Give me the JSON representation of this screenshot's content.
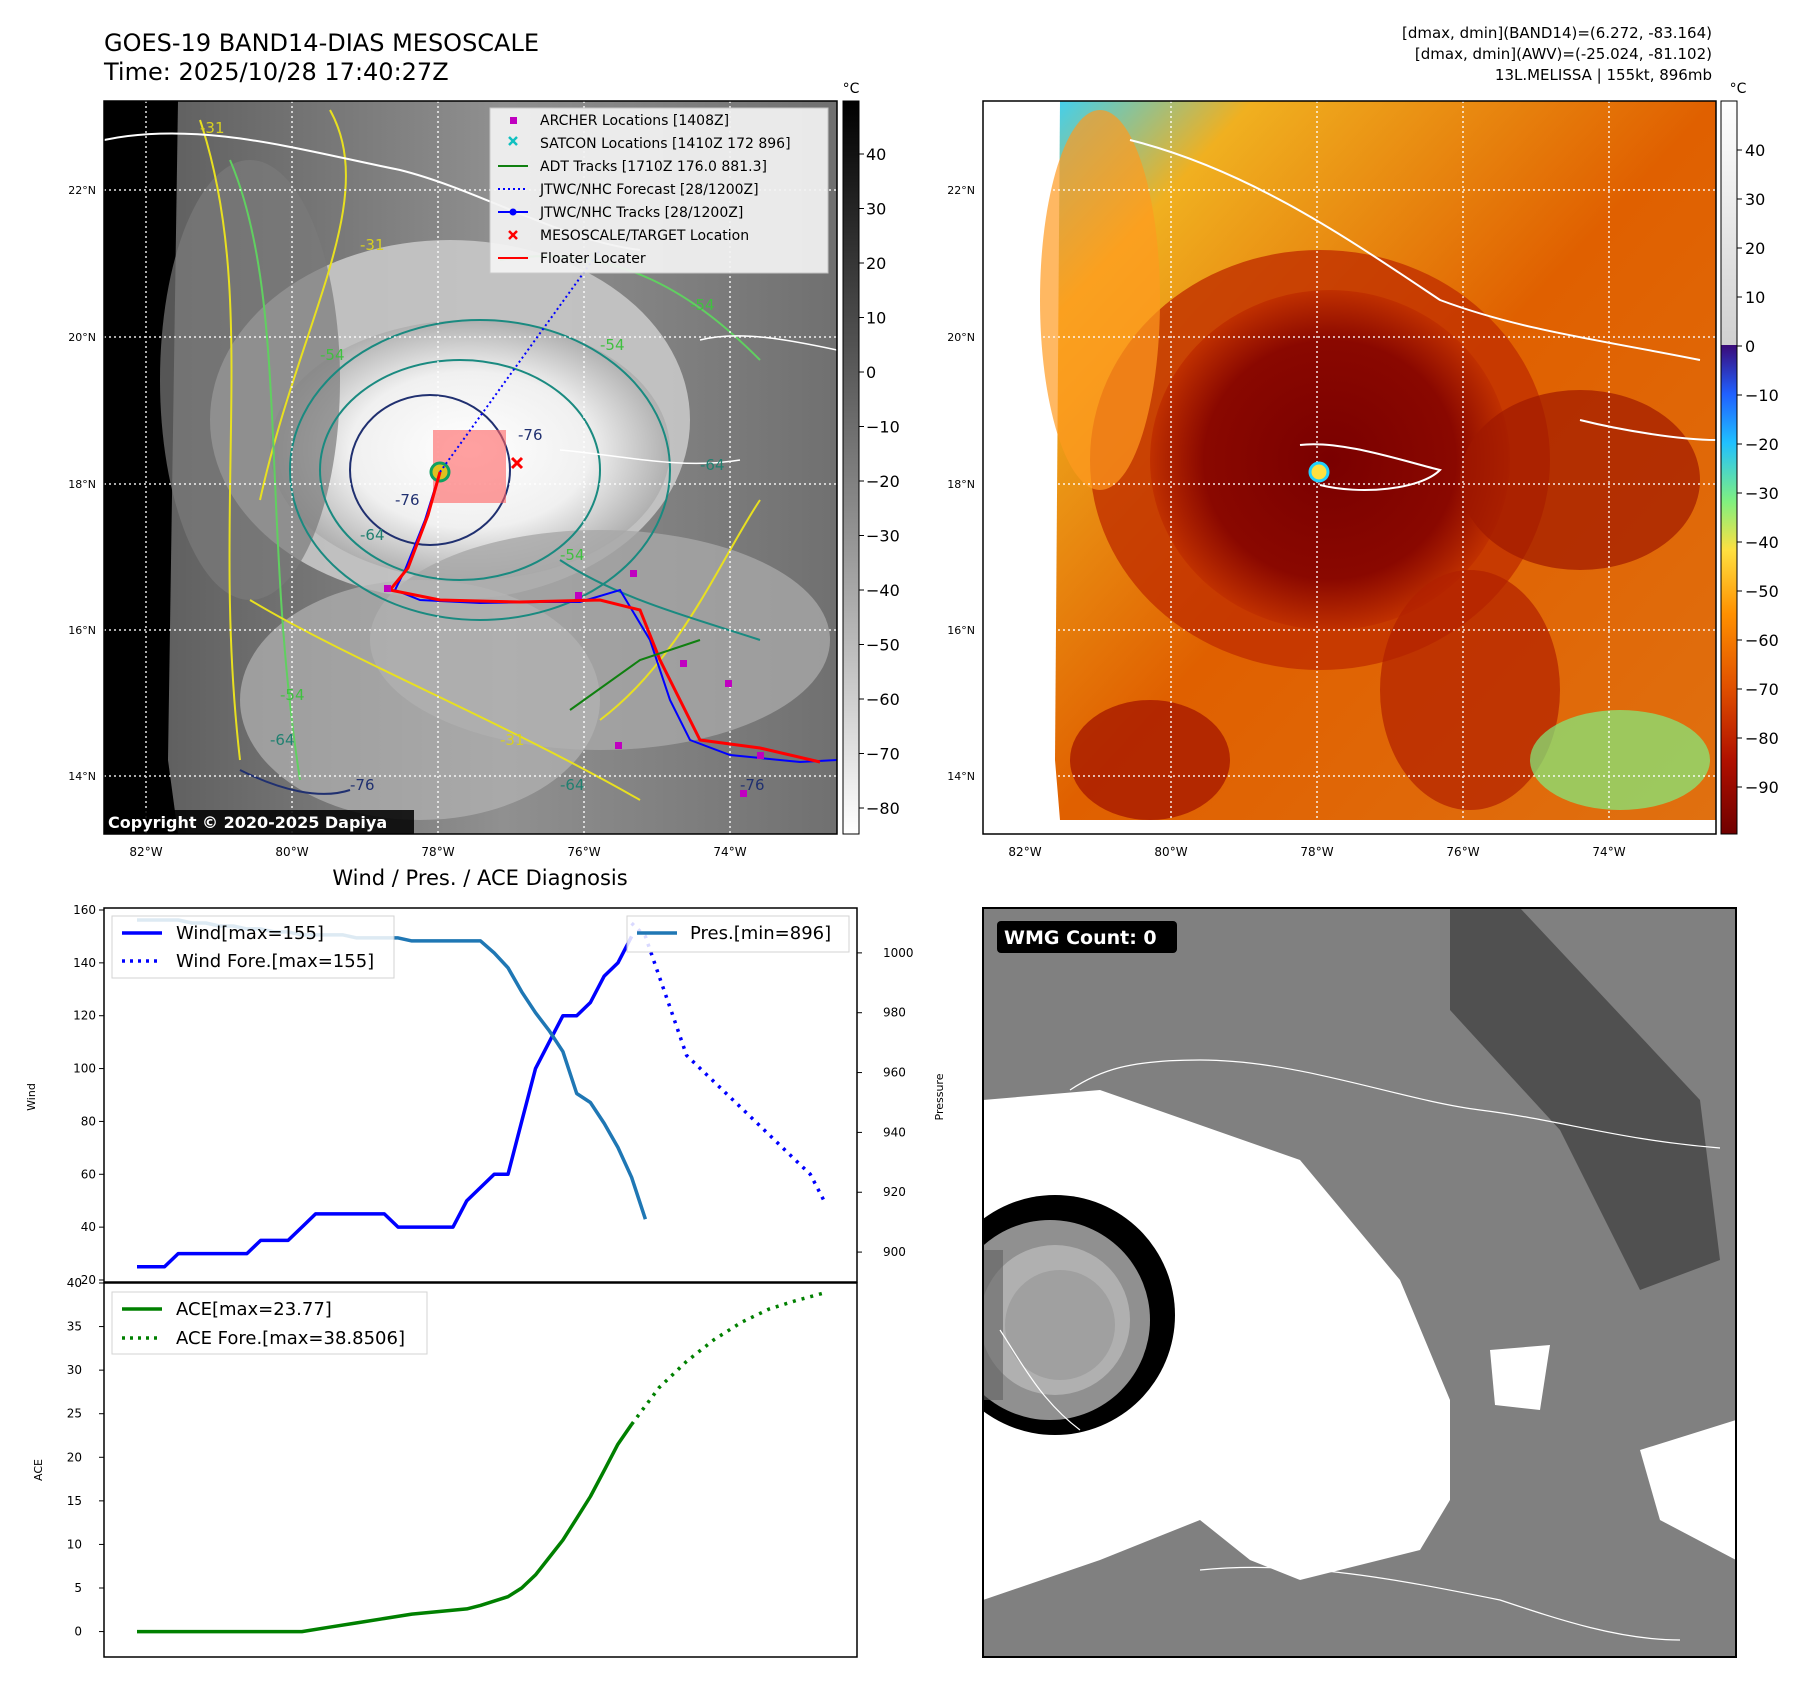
{
  "header": {
    "title_line1": "GOES-19 BAND14-DIAS MESOSCALE",
    "title_line2": "Time: 2025/10/28 17:40:27Z",
    "right_line1": "[dmax, dmin](BAND14)=(6.272, -83.164)",
    "right_line2": "[dmax, dmin](AWV)=(-25.024, -81.102)",
    "right_line3": "13L.MELISSA | 155kt, 896mb"
  },
  "map_axes": {
    "lat_labels": [
      "22°N",
      "20°N",
      "18°N",
      "16°N",
      "14°N"
    ],
    "lon_labels": [
      "82°W",
      "80°W",
      "78°W",
      "76°W",
      "74°W"
    ],
    "contour_labels": [
      "-31",
      "-31",
      "-54",
      "-54",
      "-54",
      "-64",
      "-64",
      "-76",
      "-76",
      "-76",
      "-64",
      "-54",
      "-54",
      "-31",
      "-64",
      "-76"
    ]
  },
  "gray_colorbar": {
    "unit": "°C",
    "ticks": [
      "40",
      "30",
      "20",
      "10",
      "0",
      "−10",
      "−20",
      "−30",
      "−40",
      "−50",
      "−60",
      "−70",
      "−80"
    ]
  },
  "color_colorbar": {
    "unit": "°C",
    "ticks": [
      "40",
      "30",
      "20",
      "10",
      "0",
      "−10",
      "−20",
      "−30",
      "−40",
      "−50",
      "−60",
      "−70",
      "−80",
      "−90"
    ]
  },
  "legend": {
    "items": [
      {
        "label": "ARCHER Locations [1408Z]",
        "color": "#c000c0"
      },
      {
        "label": "SATCON Locations [1410Z 172 896]",
        "color": "#10c0c0"
      },
      {
        "label": "ADT Tracks [1710Z 176.0 881.3]",
        "color": "#108010"
      },
      {
        "label": "JTWC/NHC Forecast [28/1200Z]",
        "color": "#0000ff"
      },
      {
        "label": "JTWC/NHC Tracks [28/1200Z]",
        "color": "#0000ff"
      },
      {
        "label": "MESOSCALE/TARGET Location",
        "color": "#ff0000"
      },
      {
        "label": "Floater Locater",
        "color": "#ff0000"
      }
    ]
  },
  "copyright": "Copyright © 2020-2025 Dapiya",
  "wmg_label": "WMG Count: 0",
  "chart_data": [
    {
      "type": "line",
      "title": "Wind / Pres. / ACE Diagnosis",
      "ylabel": "Wind",
      "ylabel2": "Pressure",
      "ylim": [
        20,
        160
      ],
      "ylim2": [
        890,
        1015
      ],
      "yticks": [
        20,
        40,
        60,
        80,
        100,
        120,
        140,
        160
      ],
      "yticks2": [
        900,
        920,
        940,
        960,
        980,
        1000
      ],
      "series": [
        {
          "name": "Wind[max=155]",
          "color": "#0000ff",
          "style": "solid",
          "x": [
            0,
            1,
            2,
            3,
            4,
            5,
            6,
            7,
            8,
            9,
            10,
            11,
            12,
            13,
            14,
            15,
            16,
            17,
            18,
            19,
            20,
            21,
            22,
            23,
            24,
            25,
            26,
            27,
            28,
            29,
            30,
            31,
            32,
            33,
            34,
            35,
            36
          ],
          "values": [
            25,
            25,
            25,
            30,
            30,
            30,
            30,
            30,
            30,
            35,
            35,
            35,
            40,
            45,
            45,
            45,
            45,
            45,
            45,
            40,
            40,
            40,
            40,
            40,
            50,
            55,
            60,
            60,
            80,
            100,
            110,
            120,
            120,
            125,
            135,
            140,
            150
          ]
        },
        {
          "name": "Wind Fore.[max=155]",
          "color": "#0000ff",
          "style": "dotted",
          "x": [
            36,
            37,
            38,
            39,
            40,
            41,
            42,
            43,
            44,
            45,
            46,
            47,
            48,
            49,
            50
          ],
          "values": [
            155,
            150,
            135,
            120,
            105,
            100,
            95,
            90,
            85,
            80,
            75,
            70,
            65,
            60,
            50
          ]
        },
        {
          "name": "Pres.[min=896]",
          "color": "#1f77b4",
          "style": "solid",
          "axis": "right",
          "x": [
            0,
            1,
            2,
            3,
            4,
            5,
            6,
            7,
            8,
            9,
            10,
            11,
            12,
            13,
            14,
            15,
            16,
            17,
            18,
            19,
            20,
            21,
            22,
            23,
            24,
            25,
            26,
            27,
            28,
            29,
            30,
            31,
            32,
            33,
            34,
            35,
            36,
            37
          ],
          "values": [
            1011,
            1011,
            1011,
            1011,
            1010,
            1010,
            1009,
            1009,
            1008,
            1008,
            1007,
            1007,
            1006,
            1006,
            1006,
            1006,
            1005,
            1005,
            1005,
            1005,
            1004,
            1004,
            1004,
            1004,
            1004,
            1004,
            1000,
            995,
            987,
            980,
            974,
            967,
            953,
            950,
            943,
            935,
            925,
            911
          ]
        }
      ]
    },
    {
      "type": "line",
      "ylabel": "ACE",
      "ylim": [
        -2,
        40
      ],
      "yticks": [
        0,
        5,
        10,
        15,
        20,
        25,
        30,
        35,
        40
      ],
      "series": [
        {
          "name": "ACE[max=23.77]",
          "color": "#008000",
          "style": "solid",
          "x": [
            0,
            4,
            8,
            12,
            14,
            16,
            18,
            20,
            22,
            24,
            25,
            26,
            27,
            28,
            29,
            30,
            31,
            32,
            33,
            34,
            35,
            36
          ],
          "values": [
            0,
            0,
            0,
            0,
            0.5,
            1,
            1.5,
            2,
            2.3,
            2.6,
            3,
            3.5,
            4,
            5,
            6.5,
            8.5,
            10.5,
            13,
            15.5,
            18.5,
            21.5,
            23.77
          ]
        },
        {
          "name": "ACE Fore.[max=38.8506]",
          "color": "#008000",
          "style": "dotted",
          "x": [
            36,
            38,
            40,
            42,
            44,
            46,
            48,
            50
          ],
          "values": [
            23.77,
            28,
            31,
            33.5,
            35.5,
            37,
            38,
            38.85
          ]
        }
      ]
    }
  ]
}
